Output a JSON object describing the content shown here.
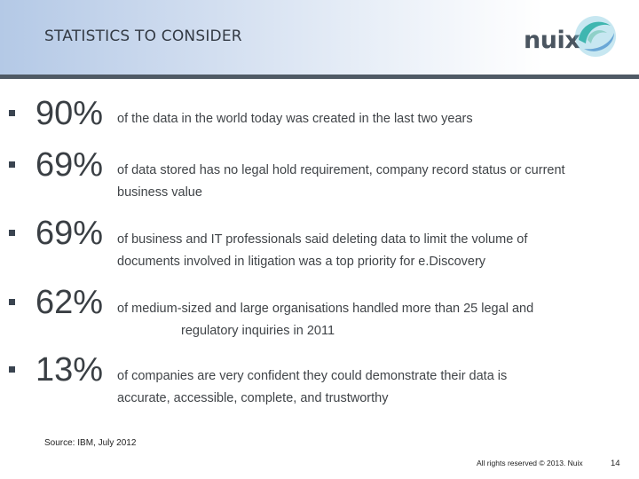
{
  "header": {
    "title": "STATISTICS TO CONSIDER",
    "logo_text": "nuix",
    "logo_icon": "nuix-swirl-logo",
    "colors": {
      "band_start": "#b4c9e6",
      "rule": "#4f5a65",
      "logo_teal": "#3fb6b0",
      "logo_blue": "#6aa7d6"
    }
  },
  "stats": [
    {
      "percent": "90%",
      "line1": "of the data in the world today was created in the last two years",
      "line2": ""
    },
    {
      "percent": "69%",
      "line1": "of data stored has no legal hold requirement, company record status or current",
      "line2": "business value"
    },
    {
      "percent": "69%",
      "line1": "of business and IT professionals said deleting data to limit the volume of",
      "line2": "documents involved in litigation was a top priority for e.Discovery"
    },
    {
      "percent": "62%",
      "line1": "of medium-sized and large organisations handled more than 25 legal and",
      "line2": "regulatory inquiries in 2011"
    },
    {
      "percent": "13%",
      "line1": "of companies are very confident they could demonstrate their data is",
      "line2": "accurate, accessible, complete, and trustworthy"
    }
  ],
  "footer": {
    "source": "Source: IBM, July 2012",
    "rights": "All rights reserved © 2013. Nuix",
    "page_number": "14"
  }
}
